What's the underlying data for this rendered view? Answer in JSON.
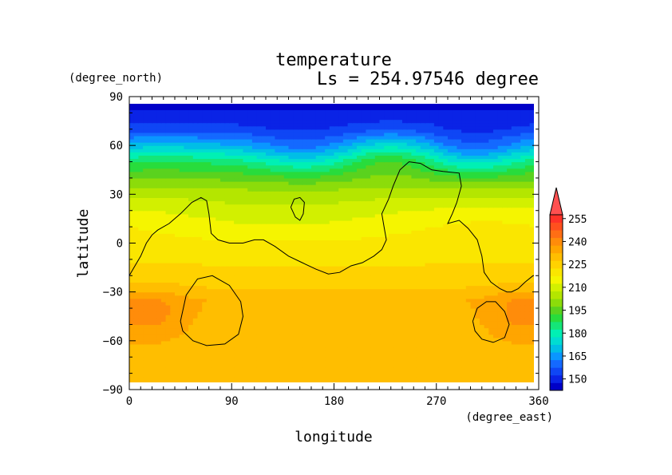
{
  "chart_data": {
    "type": "heatmap",
    "title": "temperature",
    "subtitle": "Ls = 254.97546 degree",
    "xlabel": "longitude",
    "ylabel": "latitude",
    "x_units": "(degree_east)",
    "y_units": "(degree_north)",
    "xlim": [
      0,
      360
    ],
    "ylim": [
      -90,
      90
    ],
    "x_ticks": [
      "0",
      "90",
      "180",
      "270",
      "360"
    ],
    "y_ticks": [
      "90",
      "60",
      "30",
      "0",
      "−30",
      "−60",
      "−90"
    ],
    "x_tick_values": [
      0,
      90,
      180,
      270,
      360
    ],
    "y_tick_values": [
      90,
      60,
      30,
      0,
      -30,
      -60,
      -90
    ],
    "colorbar": {
      "levels": [
        142.5,
        147.5,
        152.5,
        157.5,
        162.5,
        167.5,
        172.5,
        177.5,
        182.5,
        187.5,
        192.5,
        197.5,
        202.5,
        207.5,
        212.5,
        217.5,
        222.5,
        227.5,
        232.5,
        237.5,
        242.5,
        247.5,
        252.5,
        257.5
      ],
      "colors": [
        "#0000c8",
        "#0a23e6",
        "#0f46f5",
        "#1469ff",
        "#0a96ff",
        "#00bee6",
        "#00dcd2",
        "#00f0b4",
        "#14e678",
        "#28dc3c",
        "#5ad21e",
        "#8cdc0a",
        "#b4e600",
        "#d2f000",
        "#f5f500",
        "#fae600",
        "#ffd200",
        "#ffbe00",
        "#ffa500",
        "#ff8c0a",
        "#ff6e14",
        "#ff501e",
        "#ff3228",
        "#ff5050"
      ],
      "tick_labels": [
        "255",
        "240",
        "225",
        "210",
        "195",
        "180",
        "165",
        "150"
      ],
      "tick_values": [
        255,
        240,
        225,
        210,
        195,
        180,
        165,
        150
      ],
      "extend": "max"
    },
    "zonal_profile": {
      "lat": [
        -85,
        -60,
        -35,
        -25,
        -15,
        0,
        15,
        30,
        40,
        50,
        60,
        70,
        85
      ],
      "temp": [
        228,
        229,
        232,
        226,
        223,
        219,
        214,
        206,
        196,
        184,
        167,
        154,
        146
      ]
    },
    "warm_patches": [
      {
        "lon": 25,
        "lat": -45,
        "temp": 238
      },
      {
        "lon": 340,
        "lat": -45,
        "temp": 238
      }
    ],
    "contours": [
      {
        "name": "topography",
        "points": [
          [
            0,
            -20
          ],
          [
            5,
            -14
          ],
          [
            10,
            -8
          ],
          [
            15,
            0
          ],
          [
            20,
            5
          ],
          [
            25,
            8
          ],
          [
            35,
            12
          ],
          [
            45,
            18
          ],
          [
            55,
            25
          ],
          [
            63,
            28
          ],
          [
            68,
            26
          ],
          [
            70,
            18
          ],
          [
            72,
            6
          ],
          [
            78,
            2
          ],
          [
            88,
            0
          ],
          [
            100,
            0
          ],
          [
            110,
            2
          ],
          [
            118,
            2
          ],
          [
            128,
            -2
          ],
          [
            140,
            -8
          ],
          [
            152,
            -12
          ],
          [
            164,
            -16
          ],
          [
            175,
            -19
          ],
          [
            185,
            -18
          ],
          [
            195,
            -14
          ],
          [
            205,
            -12
          ],
          [
            215,
            -8
          ],
          [
            222,
            -4
          ],
          [
            226,
            2
          ],
          [
            224,
            10
          ],
          [
            222,
            18
          ],
          [
            228,
            27
          ],
          [
            232,
            35
          ],
          [
            238,
            45
          ],
          [
            246,
            50
          ],
          [
            256,
            49
          ],
          [
            266,
            45
          ],
          [
            276,
            44
          ],
          [
            290,
            43
          ],
          [
            292,
            35
          ],
          [
            288,
            25
          ],
          [
            284,
            18
          ],
          [
            280,
            12
          ],
          [
            290,
            14
          ],
          [
            298,
            9
          ],
          [
            306,
            2
          ],
          [
            310,
            -8
          ],
          [
            312,
            -18
          ],
          [
            318,
            -24
          ],
          [
            326,
            -28
          ],
          [
            332,
            -30
          ],
          [
            336,
            -30
          ],
          [
            342,
            -28
          ],
          [
            348,
            -24
          ],
          [
            355,
            -20
          ],
          [
            360,
            -20
          ]
        ]
      },
      {
        "name": "topography",
        "points": [
          [
            142,
            22
          ],
          [
            145,
            27
          ],
          [
            150,
            28
          ],
          [
            154,
            25
          ],
          [
            153,
            18
          ],
          [
            150,
            14
          ],
          [
            146,
            16
          ],
          [
            142,
            22
          ]
        ]
      },
      {
        "name": "topography",
        "points": [
          [
            45,
            -48
          ],
          [
            50,
            -32
          ],
          [
            60,
            -22
          ],
          [
            73,
            -20
          ],
          [
            88,
            -26
          ],
          [
            98,
            -36
          ],
          [
            100,
            -45
          ],
          [
            96,
            -56
          ],
          [
            84,
            -62
          ],
          [
            68,
            -63
          ],
          [
            56,
            -60
          ],
          [
            47,
            -54
          ],
          [
            45,
            -48
          ]
        ]
      },
      {
        "name": "topography",
        "points": [
          [
            302,
            -48
          ],
          [
            306,
            -40
          ],
          [
            314,
            -36
          ],
          [
            322,
            -36
          ],
          [
            330,
            -42
          ],
          [
            334,
            -50
          ],
          [
            330,
            -58
          ],
          [
            320,
            -61
          ],
          [
            310,
            -59
          ],
          [
            304,
            -54
          ],
          [
            302,
            -48
          ]
        ]
      }
    ]
  }
}
